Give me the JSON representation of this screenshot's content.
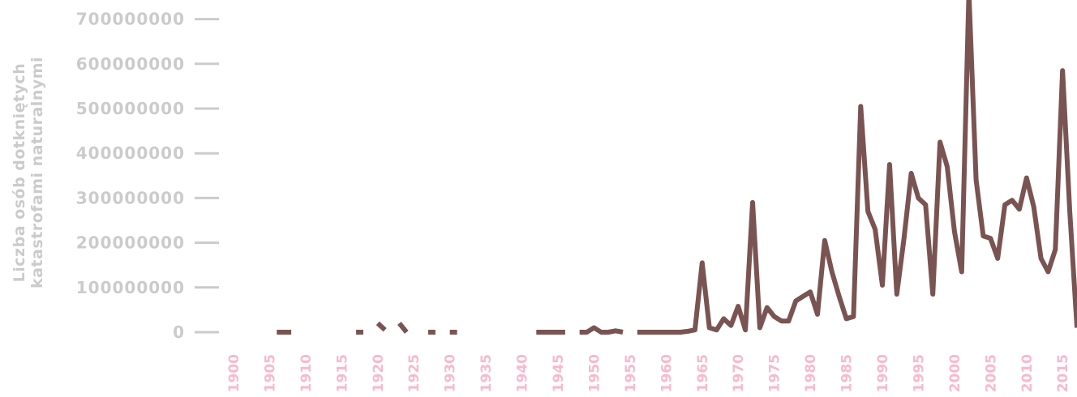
{
  "chart_data": {
    "type": "line",
    "ylabel_lines": [
      "Liczba osób dotkniętych",
      "katastrofami naturalnymi"
    ],
    "xlabel": "",
    "title": "",
    "xlim": [
      1900,
      2017
    ],
    "ylim": [
      0,
      750000000
    ],
    "yticks": [
      "0",
      "100000000",
      "200000000",
      "300000000",
      "400000000",
      "500000000",
      "600000000",
      "700000000"
    ],
    "xticks": [
      "1900",
      "1905",
      "1910",
      "1915",
      "1920",
      "1925",
      "1930",
      "1935",
      "1940",
      "1945",
      "1950",
      "1955",
      "1960",
      "1965",
      "1970",
      "1975",
      "1980",
      "1985",
      "1990",
      "1995",
      "2000",
      "2005",
      "2010",
      "2015"
    ],
    "grid": false,
    "legend": "none",
    "line_color": "#7a5452",
    "ytick_color": "#cbcbcb",
    "xtick_color": "#f9b9cd",
    "series": [
      {
        "values": [
          [
            1906,
            0
          ],
          [
            1907,
            0
          ],
          [
            1908,
            0
          ],
          null,
          [
            1917,
            0
          ],
          [
            1918,
            0
          ],
          null,
          [
            1920,
            20000000
          ],
          [
            1921,
            5000000
          ],
          null,
          [
            1923,
            20000000
          ],
          [
            1924,
            0
          ],
          null,
          [
            1927,
            0
          ],
          [
            1928,
            0
          ],
          null,
          [
            1930,
            0
          ],
          [
            1931,
            0
          ],
          null,
          [
            1942,
            0
          ],
          [
            1943,
            0
          ],
          [
            1944,
            0
          ],
          [
            1945,
            0
          ],
          [
            1946,
            0
          ],
          null,
          [
            1948,
            0
          ],
          [
            1949,
            0
          ],
          [
            1950,
            10000000
          ],
          [
            1951,
            0
          ],
          [
            1952,
            0
          ],
          [
            1953,
            3000000
          ],
          [
            1954,
            0
          ],
          null,
          [
            1956,
            0
          ],
          [
            1957,
            0
          ],
          [
            1958,
            0
          ],
          [
            1959,
            0
          ],
          [
            1960,
            0
          ],
          [
            1961,
            0
          ],
          [
            1962,
            0
          ],
          [
            1963,
            2000000
          ],
          [
            1964,
            5000000
          ],
          [
            1965,
            155000000
          ],
          [
            1966,
            10000000
          ],
          [
            1967,
            5000000
          ],
          [
            1968,
            30000000
          ],
          [
            1969,
            15000000
          ],
          [
            1970,
            58000000
          ],
          [
            1971,
            5000000
          ],
          [
            1972,
            290000000
          ],
          [
            1973,
            10000000
          ],
          [
            1974,
            55000000
          ],
          [
            1975,
            35000000
          ],
          [
            1976,
            25000000
          ],
          [
            1977,
            25000000
          ],
          [
            1978,
            70000000
          ],
          [
            1979,
            80000000
          ],
          [
            1980,
            90000000
          ],
          [
            1981,
            40000000
          ],
          [
            1982,
            205000000
          ],
          [
            1983,
            135000000
          ],
          [
            1984,
            80000000
          ],
          [
            1985,
            30000000
          ],
          [
            1986,
            35000000
          ],
          [
            1987,
            505000000
          ],
          [
            1988,
            270000000
          ],
          [
            1989,
            230000000
          ],
          [
            1990,
            105000000
          ],
          [
            1991,
            375000000
          ],
          [
            1992,
            85000000
          ],
          [
            1993,
            210000000
          ],
          [
            1994,
            355000000
          ],
          [
            1995,
            300000000
          ],
          [
            1996,
            285000000
          ],
          [
            1997,
            85000000
          ],
          [
            1998,
            425000000
          ],
          [
            1999,
            370000000
          ],
          [
            2000,
            225000000
          ],
          [
            2001,
            135000000
          ],
          [
            2002,
            760000000
          ],
          [
            2003,
            340000000
          ],
          [
            2004,
            215000000
          ],
          [
            2005,
            210000000
          ],
          [
            2006,
            165000000
          ],
          [
            2007,
            285000000
          ],
          [
            2008,
            295000000
          ],
          [
            2009,
            275000000
          ],
          [
            2010,
            345000000
          ],
          [
            2011,
            280000000
          ],
          [
            2012,
            165000000
          ],
          [
            2013,
            135000000
          ],
          [
            2014,
            185000000
          ],
          [
            2015,
            585000000
          ],
          [
            2016,
            270000000
          ],
          [
            2017,
            10000000
          ]
        ]
      }
    ]
  }
}
